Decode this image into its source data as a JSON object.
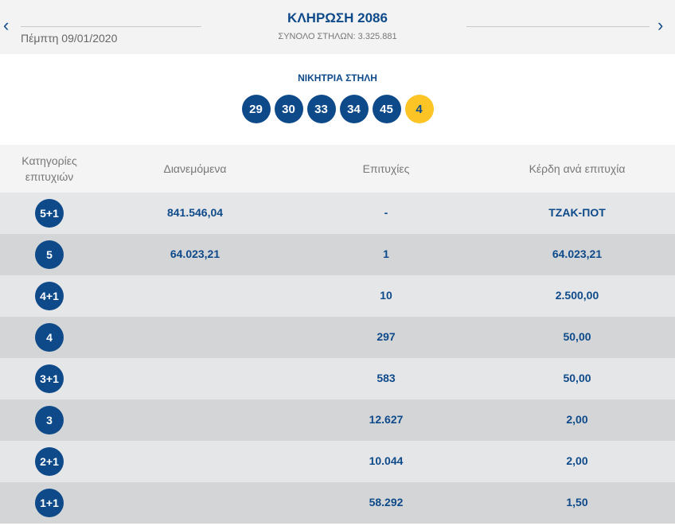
{
  "header": {
    "title": "ΚΛΗΡΩΣΗ 2086",
    "date": "Πέμπτη 09/01/2020",
    "total_columns": "ΣΥΝΟΛΟ ΣΤΗΛΩΝ: 3.325.881",
    "prev_icon": "chevron-left-icon",
    "next_icon": "chevron-right-icon"
  },
  "winning": {
    "label": "ΝΙΚΗΤΡΙΑ ΣΤΗΛΗ",
    "numbers": [
      "29",
      "30",
      "33",
      "34",
      "45"
    ],
    "bonus": "4"
  },
  "table": {
    "headers": [
      "Κατηγορίες επιτυχιών",
      "Διανεμόμενα",
      "Επιτυχίες",
      "Κέρδη ανά επιτυχία"
    ],
    "rows": [
      {
        "category": "5+1",
        "distributed": "841.546,04",
        "winners": "-",
        "prize": "ΤΖΑΚ-ΠΟΤ"
      },
      {
        "category": "5",
        "distributed": "64.023,21",
        "winners": "1",
        "prize": "64.023,21"
      },
      {
        "category": "4+1",
        "distributed": "",
        "winners": "10",
        "prize": "2.500,00"
      },
      {
        "category": "4",
        "distributed": "",
        "winners": "297",
        "prize": "50,00"
      },
      {
        "category": "3+1",
        "distributed": "",
        "winners": "583",
        "prize": "50,00"
      },
      {
        "category": "3",
        "distributed": "",
        "winners": "12.627",
        "prize": "2,00"
      },
      {
        "category": "2+1",
        "distributed": "",
        "winners": "10.044",
        "prize": "2,00"
      },
      {
        "category": "1+1",
        "distributed": "",
        "winners": "58.292",
        "prize": "1,50"
      }
    ]
  },
  "colors": {
    "navy": "#0e4a8a",
    "bonus": "#fcc525",
    "row_light": "#e5e6e8",
    "row_dark": "#d4d5d7"
  }
}
